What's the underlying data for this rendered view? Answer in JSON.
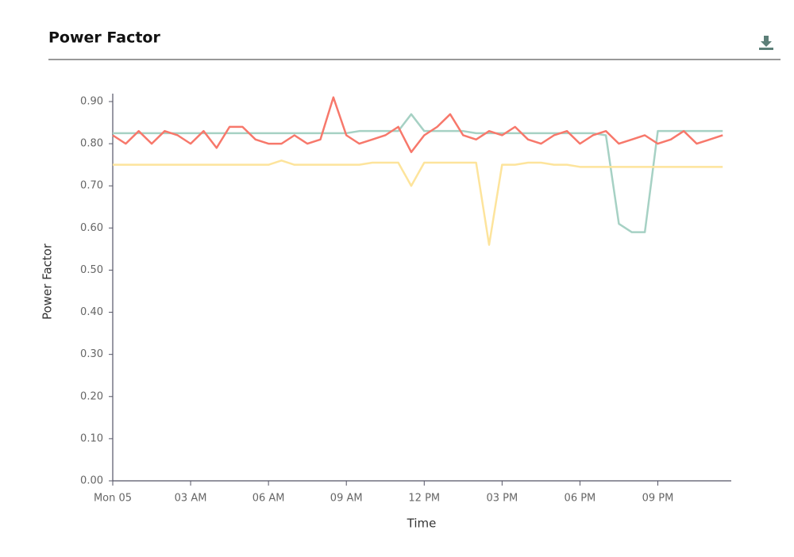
{
  "header": {
    "title": "Power Factor"
  },
  "chart_data": {
    "type": "line",
    "x_label": "Time",
    "y_label": "Power Factor",
    "x": [
      0,
      0.5,
      1,
      1.5,
      2,
      2.5,
      3,
      3.5,
      4,
      4.5,
      5,
      5.5,
      6,
      6.5,
      7,
      7.5,
      8,
      8.5,
      9,
      9.5,
      10,
      10.5,
      11,
      11.5,
      12,
      12.5,
      13,
      13.5,
      14,
      14.5,
      15,
      15.5,
      16,
      16.5,
      17,
      17.5,
      18,
      18.5,
      19,
      19.5,
      20,
      20.5,
      21,
      21.5,
      22,
      22.5,
      23,
      23.5
    ],
    "xlim": [
      0,
      23.83
    ],
    "xticks": [
      {
        "value": 0,
        "label": "Mon 05"
      },
      {
        "value": 3,
        "label": "03 AM"
      },
      {
        "value": 6,
        "label": "06 AM"
      },
      {
        "value": 9,
        "label": "09 AM"
      },
      {
        "value": 12,
        "label": "12 PM"
      },
      {
        "value": 15,
        "label": "03 PM"
      },
      {
        "value": 18,
        "label": "06 PM"
      },
      {
        "value": 21,
        "label": "09 PM"
      }
    ],
    "ylim": [
      0,
      0.9
    ],
    "yticks": [
      {
        "value": 0,
        "label": "0.00"
      },
      {
        "value": 0.1,
        "label": "0.10"
      },
      {
        "value": 0.2,
        "label": "0.20"
      },
      {
        "value": 0.3,
        "label": "0.30"
      },
      {
        "value": 0.4,
        "label": "0.40"
      },
      {
        "value": 0.5,
        "label": "0.50"
      },
      {
        "value": 0.6,
        "label": "0.60"
      },
      {
        "value": 0.7,
        "label": "0.70"
      },
      {
        "value": 0.8,
        "label": "0.80"
      },
      {
        "value": 0.9,
        "label": "0.90"
      }
    ],
    "series": [
      {
        "color": "#a6d1c4",
        "values": [
          0.825,
          0.825,
          0.825,
          0.825,
          0.825,
          0.825,
          0.825,
          0.825,
          0.825,
          0.825,
          0.825,
          0.825,
          0.825,
          0.825,
          0.825,
          0.825,
          0.825,
          0.825,
          0.825,
          0.83,
          0.83,
          0.83,
          0.83,
          0.87,
          0.83,
          0.83,
          0.83,
          0.83,
          0.825,
          0.825,
          0.825,
          0.825,
          0.825,
          0.825,
          0.825,
          0.825,
          0.825,
          0.825,
          0.82,
          0.61,
          0.59,
          0.59,
          0.83,
          0.83,
          0.83,
          0.83,
          0.83,
          0.83
        ]
      },
      {
        "color": "#fde49c",
        "values": [
          0.75,
          0.75,
          0.75,
          0.75,
          0.75,
          0.75,
          0.75,
          0.75,
          0.75,
          0.75,
          0.75,
          0.75,
          0.75,
          0.76,
          0.75,
          0.75,
          0.75,
          0.75,
          0.75,
          0.75,
          0.755,
          0.755,
          0.755,
          0.7,
          0.755,
          0.755,
          0.755,
          0.755,
          0.755,
          0.56,
          0.75,
          0.75,
          0.755,
          0.755,
          0.75,
          0.75,
          0.745,
          0.745,
          0.745,
          0.745,
          0.745,
          0.745,
          0.745,
          0.745,
          0.745,
          0.745,
          0.745,
          0.745
        ]
      },
      {
        "color": "#f7786b",
        "values": [
          0.82,
          0.8,
          0.83,
          0.8,
          0.83,
          0.82,
          0.8,
          0.83,
          0.79,
          0.84,
          0.84,
          0.81,
          0.8,
          0.8,
          0.82,
          0.8,
          0.81,
          0.91,
          0.82,
          0.8,
          0.81,
          0.82,
          0.84,
          0.78,
          0.82,
          0.84,
          0.87,
          0.82,
          0.81,
          0.83,
          0.82,
          0.84,
          0.81,
          0.8,
          0.82,
          0.83,
          0.8,
          0.82,
          0.83,
          0.8,
          0.81,
          0.82,
          0.8,
          0.81,
          0.83,
          0.8,
          0.81,
          0.82
        ]
      }
    ]
  }
}
